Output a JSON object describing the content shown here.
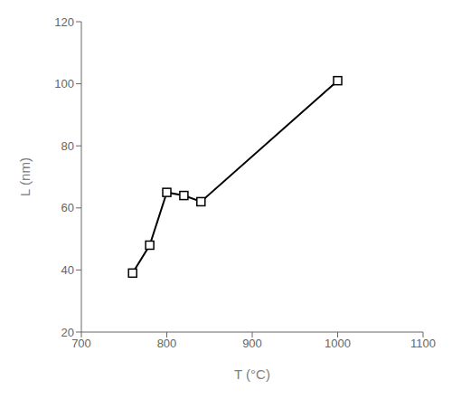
{
  "chart_data": {
    "type": "line",
    "x": [
      760,
      780,
      800,
      820,
      840,
      1000
    ],
    "values": [
      39,
      48,
      65,
      64,
      62,
      101
    ],
    "xlabel": "T (°C)",
    "ylabel": "L (nm)",
    "xlim": [
      700,
      1100
    ],
    "ylim": [
      20,
      120
    ],
    "xticks": [
      700,
      800,
      900,
      1000,
      1100
    ],
    "yticks": [
      20,
      40,
      60,
      80,
      100,
      120
    ],
    "color": "#000000",
    "marker": "square",
    "grid": false
  }
}
